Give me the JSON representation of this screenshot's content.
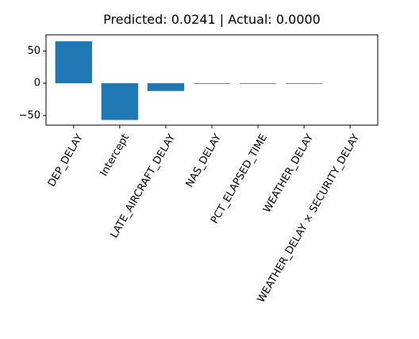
{
  "chart_data": {
    "type": "bar",
    "title": "Predicted: 0.0241 | Actual: 0.0000",
    "xlabel": "",
    "ylabel": "",
    "categories": [
      "DEP_DELAY",
      "Intercept",
      "LATE_AIRCRAFT_DELAY",
      "NAS_DELAY",
      "PCT_ELAPSED_TIME",
      "WEATHER_DELAY",
      "WEATHER_DELAY × SECURITY_DELAY"
    ],
    "values": [
      65,
      -57,
      -12,
      -1,
      -0.3,
      -0.2,
      0
    ],
    "ylim": [
      -65,
      75
    ],
    "yticks": [
      -50,
      0,
      50
    ],
    "grid": false,
    "bar_color": "#1f77b4"
  }
}
